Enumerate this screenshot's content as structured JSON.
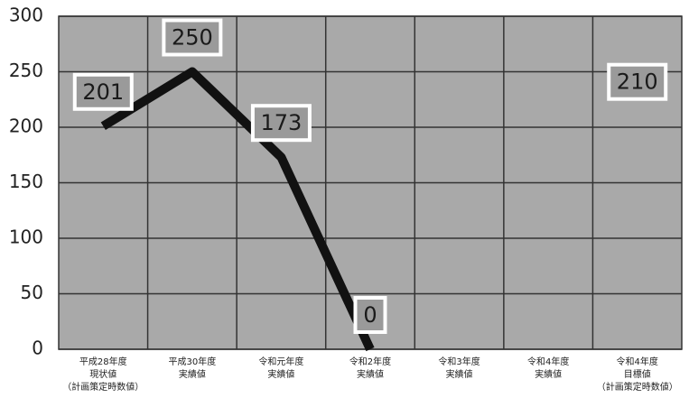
{
  "chart_data": {
    "type": "line",
    "categories": [
      [
        "平成28年度",
        "現状値",
        "（計画策定時数値）"
      ],
      [
        "平成30年度",
        "実績値"
      ],
      [
        "令和元年度",
        "実績値"
      ],
      [
        "令和2年度",
        "実績値"
      ],
      [
        "令和3年度",
        "実績値"
      ],
      [
        "令和4年度",
        "実績値"
      ],
      [
        "令和4年度",
        "目標値",
        "（計画策定時数値）"
      ]
    ],
    "series": [
      {
        "color": "#111111",
        "values": [
          201,
          250,
          173,
          0,
          null,
          null,
          210
        ]
      }
    ],
    "ylim": [
      0,
      300
    ],
    "yticks": [
      0,
      50,
      100,
      150,
      200,
      250,
      300
    ],
    "grid": true
  }
}
